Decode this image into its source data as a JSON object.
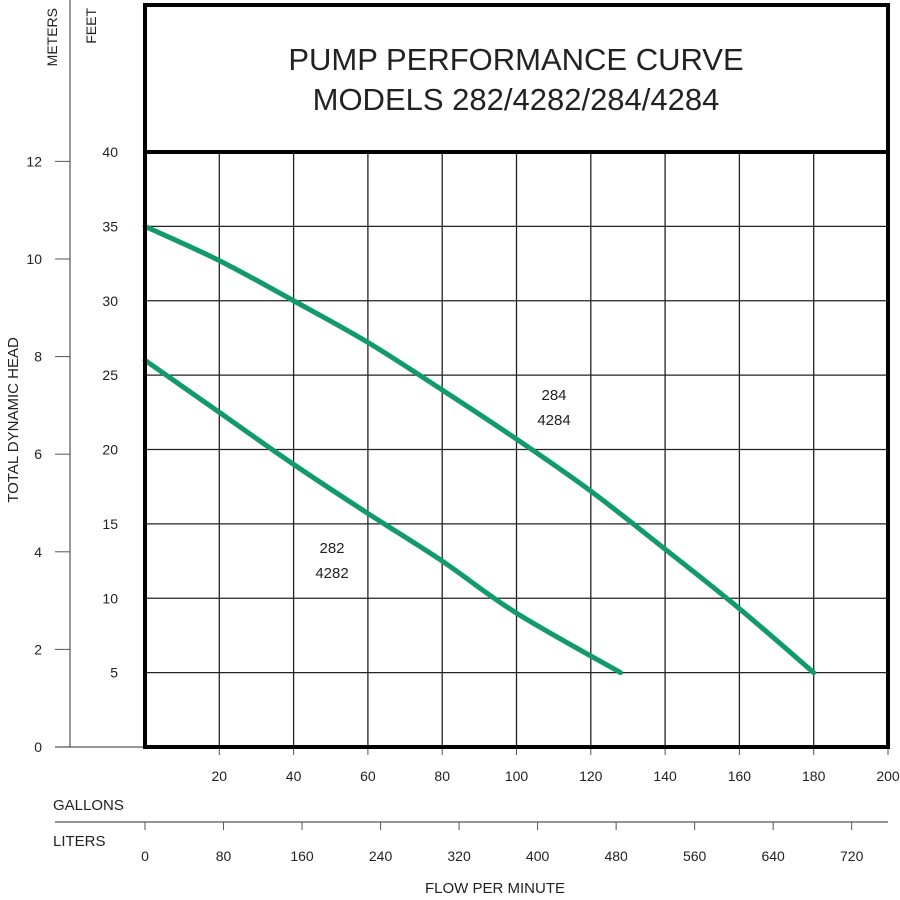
{
  "chart_data": {
    "type": "line",
    "title": "PUMP PERFORMANCE CURVE",
    "subtitle": "MODELS 282/4282/284/4284",
    "xlabel": "FLOW PER MINUTE",
    "ylabel": "TOTAL DYNAMIC HEAD",
    "x_units_primary": "GALLONS",
    "x_units_secondary": "LITERS",
    "y_units_primary": "FEET",
    "y_units_secondary": "METERS",
    "xlim": [
      0,
      200
    ],
    "ylim": [
      0,
      40
    ],
    "grid": true,
    "x_ticks_gallons": [
      20,
      40,
      60,
      80,
      100,
      120,
      140,
      160,
      180,
      200
    ],
    "x_ticks_liters": [
      0,
      80,
      160,
      240,
      320,
      400,
      480,
      560,
      640,
      720
    ],
    "y_ticks_feet": [
      5,
      10,
      15,
      20,
      25,
      30,
      35,
      40
    ],
    "y_ticks_meters": [
      0,
      2,
      4,
      6,
      8,
      10,
      12
    ],
    "line_color": "#119a6b",
    "series": [
      {
        "name": "284 4284",
        "label_lines": [
          "284",
          "4284"
        ],
        "x": [
          0,
          20,
          40,
          60,
          80,
          100,
          120,
          140,
          160,
          180
        ],
        "y": [
          35,
          32.7,
          30,
          27.2,
          24,
          20.7,
          17.2,
          13.3,
          9.3,
          5
        ]
      },
      {
        "name": "282 4282",
        "label_lines": [
          "282",
          "4282"
        ],
        "x": [
          0,
          20,
          40,
          60,
          80,
          100,
          128
        ],
        "y": [
          26,
          22.5,
          19,
          15.7,
          12.5,
          9,
          5
        ]
      }
    ]
  }
}
